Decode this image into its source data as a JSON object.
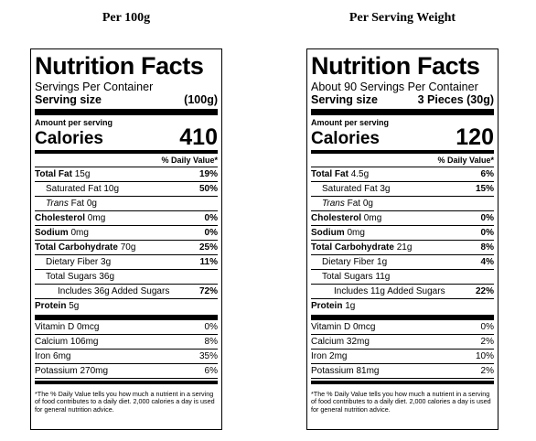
{
  "panels": [
    {
      "heading": "Per 100g",
      "title": "Nutrition Facts",
      "servings_line": "Servings Per Container",
      "serving_size_label": "Serving size",
      "serving_size_value": "(100g)",
      "amount_per_serving": "Amount per serving",
      "calories_label": "Calories",
      "calories_value": "410",
      "dv_header": "% Daily Value*",
      "total_fat": {
        "label": "Total Fat",
        "amount": "15g",
        "dv": "19%"
      },
      "saturated_fat": {
        "label": "Saturated Fat",
        "amount": "10g",
        "dv": "50%"
      },
      "trans_fat": {
        "label": "Trans",
        "suffix": "Fat",
        "amount": "0g"
      },
      "cholesterol": {
        "label": "Cholesterol",
        "amount": "0mg",
        "dv": "0%"
      },
      "sodium": {
        "label": "Sodium",
        "amount": "0mg",
        "dv": "0%"
      },
      "total_carb": {
        "label": "Total Carbohydrate",
        "amount": "70g",
        "dv": "25%"
      },
      "fiber": {
        "label": "Dietary Fiber",
        "amount": "3g",
        "dv": "11%"
      },
      "total_sugars": {
        "label": "Total Sugars",
        "amount": "36g"
      },
      "added_sugars": {
        "label": "Includes 36g Added Sugars",
        "dv": "72%"
      },
      "protein": {
        "label": "Protein",
        "amount": "5g"
      },
      "vitamin_d": {
        "label": "Vitamin D",
        "amount": "0mcg",
        "dv": "0%"
      },
      "calcium": {
        "label": "Calcium",
        "amount": "106mg",
        "dv": "8%"
      },
      "iron": {
        "label": "Iron",
        "amount": "6mg",
        "dv": "35%"
      },
      "potassium": {
        "label": "Potassium",
        "amount": "270mg",
        "dv": "6%"
      },
      "footnote": "*The % Daily Value tells you how much a nutrient in a serving of food contributes to a daily diet. 2,000 calories a day is used for general nutrition advice."
    },
    {
      "heading": "Per Serving Weight",
      "title": "Nutrition Facts",
      "servings_line": "About 90 Servings Per Container",
      "serving_size_label": "Serving size",
      "serving_size_value": "3 Pieces (30g)",
      "amount_per_serving": "Amount per serving",
      "calories_label": "Calories",
      "calories_value": "120",
      "dv_header": "% Daily Value*",
      "total_fat": {
        "label": "Total Fat",
        "amount": "4.5g",
        "dv": "6%"
      },
      "saturated_fat": {
        "label": "Saturated Fat",
        "amount": "3g",
        "dv": "15%"
      },
      "trans_fat": {
        "label": "Trans",
        "suffix": "Fat",
        "amount": "0g"
      },
      "cholesterol": {
        "label": "Cholesterol",
        "amount": "0mg",
        "dv": "0%"
      },
      "sodium": {
        "label": "Sodium",
        "amount": "0mg",
        "dv": "0%"
      },
      "total_carb": {
        "label": "Total Carbohydrate",
        "amount": "21g",
        "dv": "8%"
      },
      "fiber": {
        "label": "Dietary Fiber",
        "amount": "1g",
        "dv": "4%"
      },
      "total_sugars": {
        "label": "Total Sugars",
        "amount": "11g"
      },
      "added_sugars": {
        "label": "Includes 11g Added Sugars",
        "dv": "22%"
      },
      "protein": {
        "label": "Protein",
        "amount": "1g"
      },
      "vitamin_d": {
        "label": "Vitamin D",
        "amount": "0mcg",
        "dv": "0%"
      },
      "calcium": {
        "label": "Calcium",
        "amount": "32mg",
        "dv": "2%"
      },
      "iron": {
        "label": "Iron",
        "amount": "2mg",
        "dv": "10%"
      },
      "potassium": {
        "label": "Potassium",
        "amount": "81mg",
        "dv": "2%"
      },
      "footnote": "*The % Daily Value tells you how much a nutrient in a serving of food contributes to a daily diet. 2,000 calories a day is used for general nutrition advice."
    }
  ]
}
